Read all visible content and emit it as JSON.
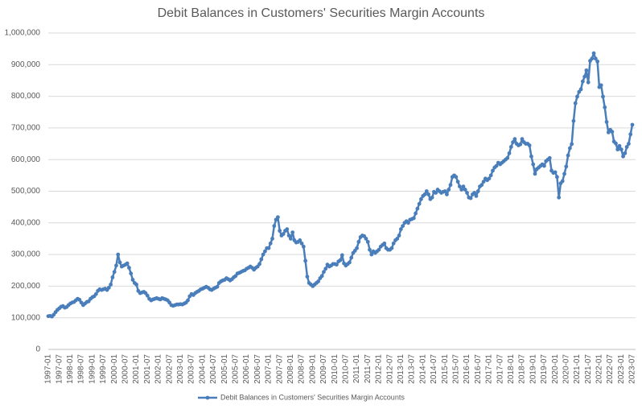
{
  "chart_data": {
    "type": "line",
    "title": "Debit Balances in Customers' Securities Margin Accounts",
    "categories": [
      "1997-01",
      null,
      null,
      null,
      null,
      null,
      "1997-07",
      null,
      null,
      null,
      null,
      null,
      "1998-01",
      null,
      null,
      null,
      null,
      null,
      "1998-07",
      null,
      null,
      null,
      null,
      null,
      "1999-01",
      null,
      null,
      null,
      null,
      null,
      "1999-07",
      null,
      null,
      null,
      null,
      null,
      "2000-01",
      null,
      null,
      null,
      null,
      null,
      "2000-07",
      null,
      null,
      null,
      null,
      null,
      "2001-01",
      null,
      null,
      null,
      null,
      null,
      "2001-07",
      null,
      null,
      null,
      null,
      null,
      "2002-01",
      null,
      null,
      null,
      null,
      null,
      "2002-07",
      null,
      null,
      null,
      null,
      null,
      "2003-01",
      null,
      null,
      null,
      null,
      null,
      "2003-07",
      null,
      null,
      null,
      null,
      null,
      "2004-01",
      null,
      null,
      null,
      null,
      null,
      "2004-07",
      null,
      null,
      null,
      null,
      null,
      "2005-01",
      null,
      null,
      null,
      null,
      null,
      "2005-07",
      null,
      null,
      null,
      null,
      null,
      "2006-01",
      null,
      null,
      null,
      null,
      null,
      "2006-07",
      null,
      null,
      null,
      null,
      null,
      "2007-01",
      null,
      null,
      null,
      null,
      null,
      "2007-07",
      null,
      null,
      null,
      null,
      null,
      "2008-01",
      null,
      null,
      null,
      null,
      null,
      "2008-07",
      null,
      null,
      null,
      null,
      null,
      "2009-01",
      null,
      null,
      null,
      null,
      null,
      "2009-07",
      null,
      null,
      null,
      null,
      null,
      "2010-01",
      null,
      null,
      null,
      null,
      null,
      "2010-07",
      null,
      null,
      null,
      null,
      null,
      "2011-01",
      null,
      null,
      null,
      null,
      null,
      "2011-07",
      null,
      null,
      null,
      null,
      null,
      "2012-01",
      null,
      null,
      null,
      null,
      null,
      "2012-07",
      null,
      null,
      null,
      null,
      null,
      "2013-01",
      null,
      null,
      null,
      null,
      null,
      "2013-07",
      null,
      null,
      null,
      null,
      null,
      "2014-01",
      null,
      null,
      null,
      null,
      null,
      "2014-07",
      null,
      null,
      null,
      null,
      null,
      "2015-01",
      null,
      null,
      null,
      null,
      null,
      "2015-07",
      null,
      null,
      null,
      null,
      null,
      "2016-01",
      null,
      null,
      null,
      null,
      null,
      "2016-07",
      null,
      null,
      null,
      null,
      null,
      "2017-01",
      null,
      null,
      null,
      null,
      null,
      "2017-07",
      null,
      null,
      null,
      null,
      null,
      "2018-01",
      null,
      null,
      null,
      null,
      null,
      "2018-07",
      null,
      null,
      null,
      null,
      null,
      "2019-01",
      null,
      null,
      null,
      null,
      null,
      "2019-07",
      null,
      null,
      null,
      null,
      null,
      "2020-01",
      null,
      null,
      null,
      null,
      null,
      "2020-07",
      null,
      null,
      null,
      null,
      null,
      "2021-01",
      null,
      null,
      null,
      null,
      null,
      "2021-07",
      null,
      null,
      null,
      null,
      null,
      "2022-01",
      null,
      null,
      null,
      null,
      null,
      "2022-07",
      null,
      null,
      null,
      null,
      null,
      "2023-01",
      null,
      null,
      null,
      null,
      null,
      "2023-07"
    ],
    "series": [
      {
        "name": "Debit Balances in Customers' Securities Margin Accounts",
        "color": "#4a7ebb",
        "values": [
          105000,
          106000,
          104000,
          110000,
          118000,
          125000,
          130000,
          135000,
          137000,
          132000,
          134000,
          140000,
          145000,
          148000,
          150000,
          155000,
          160000,
          157000,
          148000,
          140000,
          145000,
          150000,
          152000,
          160000,
          165000,
          168000,
          175000,
          185000,
          190000,
          188000,
          190000,
          192000,
          188000,
          195000,
          205000,
          228000,
          245000,
          265000,
          300000,
          275000,
          262000,
          265000,
          268000,
          272000,
          258000,
          240000,
          220000,
          210000,
          205000,
          185000,
          178000,
          180000,
          182000,
          178000,
          170000,
          160000,
          155000,
          158000,
          160000,
          162000,
          160000,
          158000,
          162000,
          160000,
          158000,
          155000,
          148000,
          140000,
          138000,
          140000,
          142000,
          142000,
          143000,
          142000,
          145000,
          148000,
          155000,
          168000,
          175000,
          172000,
          178000,
          182000,
          185000,
          190000,
          192000,
          195000,
          198000,
          195000,
          190000,
          188000,
          192000,
          195000,
          198000,
          210000,
          215000,
          218000,
          220000,
          225000,
          222000,
          218000,
          222000,
          228000,
          232000,
          240000,
          242000,
          245000,
          248000,
          250000,
          255000,
          258000,
          262000,
          258000,
          252000,
          258000,
          262000,
          270000,
          285000,
          300000,
          310000,
          320000,
          320000,
          335000,
          350000,
          390000,
          410000,
          418000,
          375000,
          360000,
          365000,
          375000,
          380000,
          360000,
          350000,
          370000,
          345000,
          338000,
          340000,
          345000,
          335000,
          325000,
          280000,
          230000,
          210000,
          205000,
          200000,
          205000,
          210000,
          215000,
          225000,
          232000,
          245000,
          255000,
          268000,
          262000,
          265000,
          270000,
          270000,
          268000,
          278000,
          282000,
          298000,
          272000,
          265000,
          270000,
          275000,
          290000,
          305000,
          312000,
          320000,
          340000,
          355000,
          360000,
          358000,
          350000,
          340000,
          315000,
          300000,
          310000,
          305000,
          310000,
          315000,
          325000,
          330000,
          335000,
          320000,
          315000,
          315000,
          320000,
          335000,
          345000,
          350000,
          360000,
          380000,
          390000,
          400000,
          405000,
          400000,
          410000,
          412000,
          415000,
          430000,
          445000,
          460000,
          475000,
          485000,
          490000,
          500000,
          490000,
          475000,
          480000,
          498000,
          495000,
          505000,
          500000,
          495000,
          498000,
          500000,
          490000,
          505000,
          520000,
          545000,
          550000,
          545000,
          530000,
          515000,
          505000,
          515000,
          505000,
          495000,
          480000,
          478000,
          490000,
          495000,
          485000,
          500000,
          515000,
          520000,
          530000,
          540000,
          535000,
          540000,
          550000,
          565000,
          575000,
          580000,
          590000,
          585000,
          590000,
          595000,
          600000,
          605000,
          620000,
          640000,
          655000,
          665000,
          650000,
          645000,
          648000,
          665000,
          655000,
          650000,
          650000,
          645000,
          610000,
          585000,
          555000,
          570000,
          575000,
          580000,
          585000,
          580000,
          595000,
          600000,
          605000,
          565000,
          558000,
          560000,
          545000,
          480000,
          525000,
          532000,
          555000,
          578000,
          613000,
          636000,
          649000,
          722000,
          778000,
          799000,
          814000,
          822000,
          847000,
          862000,
          882000,
          844000,
          912000,
          919000,
          936000,
          919000,
          910000,
          829000,
          835000,
          799000,
          765000,
          719000,
          686000,
          694000,
          688000,
          657000,
          651000,
          632000,
          643000,
          632000,
          610000,
          620000,
          640000,
          650000,
          680000,
          710000
        ]
      }
    ],
    "ylim": [
      0,
      1000000
    ],
    "yticks": [
      0,
      {
        "value": 100000,
        "label": "100,000"
      },
      {
        "value": 200000,
        "label": "200,000"
      },
      {
        "value": 300000,
        "label": "300,000"
      },
      {
        "value": 400000,
        "label": "400,000"
      },
      {
        "value": 500000,
        "label": "500,000"
      },
      {
        "value": 600000,
        "label": "600,000"
      },
      {
        "value": 700000,
        "label": "700,000"
      },
      {
        "value": 800000,
        "label": "800,000"
      },
      {
        "value": 900000,
        "label": "900,000"
      },
      {
        "value": 1000000,
        "label": "1,000,000"
      }
    ],
    "grid": true,
    "legend": "bottom"
  }
}
